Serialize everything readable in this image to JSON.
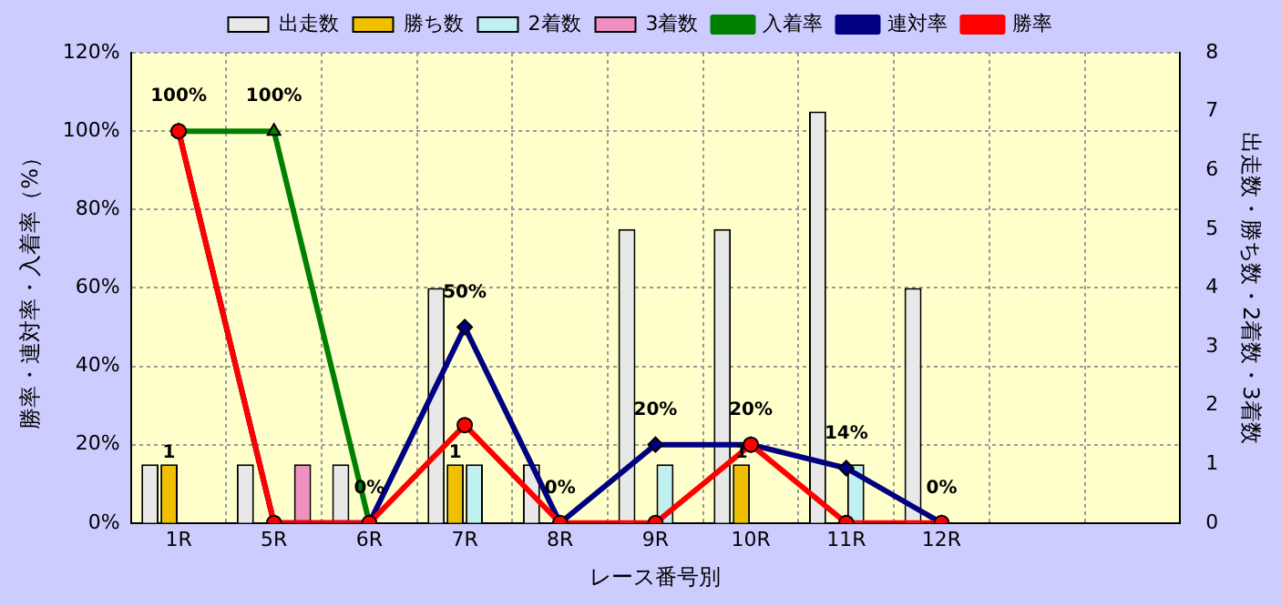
{
  "chart_data": {
    "type": "bar",
    "xlabel": "レース番号別",
    "ylabel": "勝率・連対率・入着率（%）",
    "y2label": "出走数・勝ち数・2着数・3着数",
    "categories": [
      "1R",
      "5R",
      "6R",
      "7R",
      "8R",
      "9R",
      "10R",
      "11R",
      "12R",
      null,
      null
    ],
    "series": [
      {
        "name": "出走数",
        "type": "bar",
        "axis": "y2",
        "color": "#e8e8e8",
        "values": [
          1,
          1,
          1,
          4,
          1,
          5,
          5,
          7,
          4,
          null,
          null
        ]
      },
      {
        "name": "勝ち数",
        "type": "bar",
        "axis": "y2",
        "color": "#f0c000",
        "values": [
          1,
          0,
          0,
          1,
          0,
          0,
          1,
          0,
          0,
          null,
          null
        ],
        "value_labels": [
          "1",
          null,
          null,
          "1",
          null,
          null,
          "1",
          null,
          null,
          null,
          null
        ]
      },
      {
        "name": "2着数",
        "type": "bar",
        "axis": "y2",
        "color": "#c0f0f0",
        "values": [
          0,
          0,
          0,
          1,
          0,
          1,
          0,
          1,
          0,
          null,
          null
        ]
      },
      {
        "name": "3着数",
        "type": "bar",
        "axis": "y2",
        "color": "#f090c0",
        "values": [
          0,
          1,
          0,
          0,
          0,
          0,
          0,
          0,
          0,
          null,
          null
        ]
      },
      {
        "name": "入着率",
        "type": "line",
        "color": "#008000",
        "marker": "triangle",
        "values": [
          100,
          100,
          0,
          null,
          null,
          null,
          null,
          null,
          null,
          null,
          null
        ],
        "value_labels": [
          "100%",
          "100%",
          "0%",
          null,
          null,
          null,
          null,
          null,
          null,
          null,
          null
        ]
      },
      {
        "name": "連対率",
        "type": "line",
        "color": "#000080",
        "marker": "diamond",
        "values": [
          100,
          0,
          0,
          50,
          0,
          20,
          20,
          14,
          0,
          null,
          null
        ],
        "value_labels": [
          null,
          null,
          null,
          "50%",
          "0%",
          "20%",
          "20%",
          "14%",
          "0%",
          null,
          null
        ]
      },
      {
        "name": "勝率",
        "type": "line",
        "color": "#ff0000",
        "marker": "circle",
        "values": [
          100,
          0,
          0,
          25,
          0,
          0,
          20,
          0,
          0,
          null,
          null
        ]
      }
    ],
    "ylim": [
      0,
      120
    ],
    "yticks": [
      {
        "value": 0,
        "label": "0%"
      },
      {
        "value": 20,
        "label": "20%"
      },
      {
        "value": 40,
        "label": "40%"
      },
      {
        "value": 60,
        "label": "60%"
      },
      {
        "value": 80,
        "label": "80%"
      },
      {
        "value": 100,
        "label": "100%"
      },
      {
        "value": 120,
        "label": "120%"
      }
    ],
    "y2lim": [
      0,
      8
    ],
    "y2ticks": [
      0,
      1,
      2,
      3,
      4,
      5,
      6,
      7,
      8
    ],
    "grid": true,
    "legend": "top",
    "line_style": "solid"
  }
}
